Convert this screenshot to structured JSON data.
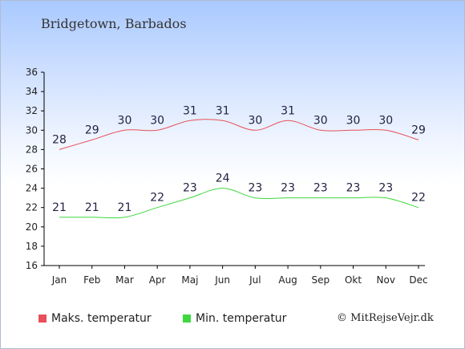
{
  "title": "Bridgetown, Barbados",
  "credit": "© MitRejseVejr.dk",
  "chart_data": {
    "type": "line",
    "categories": [
      "Jan",
      "Feb",
      "Mar",
      "Apr",
      "Maj",
      "Jun",
      "Jul",
      "Aug",
      "Sep",
      "Okt",
      "Nov",
      "Dec"
    ],
    "ylim": [
      16,
      36
    ],
    "yticks": [
      16,
      18,
      20,
      22,
      24,
      26,
      28,
      30,
      32,
      34,
      36
    ],
    "legend_position": "bottom",
    "grid": false,
    "series": [
      {
        "name": "Maks. temperatur",
        "color": "#e8505a",
        "values": [
          28,
          29,
          30,
          30,
          31,
          31,
          30,
          31,
          30,
          30,
          30,
          29
        ]
      },
      {
        "name": "Min. temperatur",
        "color": "#3ed83e",
        "values": [
          21,
          21,
          21,
          22,
          23,
          24,
          23,
          23,
          23,
          23,
          23,
          22
        ]
      }
    ]
  }
}
